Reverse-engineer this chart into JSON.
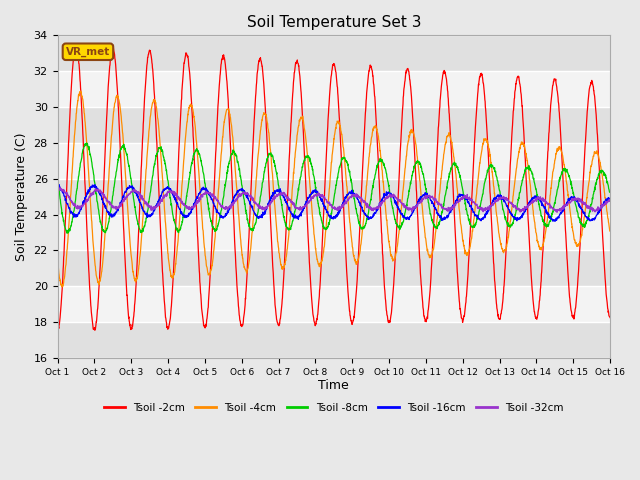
{
  "title": "Soil Temperature Set 3",
  "xlabel": "Time",
  "ylabel": "Soil Temperature (C)",
  "ylim": [
    16,
    34
  ],
  "xlim": [
    0,
    15
  ],
  "xtick_labels": [
    "Oct 1",
    "Oct 2",
    "Oct 3",
    "Oct 4",
    "Oct 5",
    "Oct 6",
    "Oct 7",
    "Oct 8",
    "Oct 9",
    "Oct 10",
    "Oct 11",
    "Oct 12",
    "Oct 13",
    "Oct 14",
    "Oct 15",
    "Oct 16"
  ],
  "ytick_values": [
    16,
    18,
    20,
    22,
    24,
    26,
    28,
    30,
    32,
    34
  ],
  "annotation_text": "VR_met",
  "annotation_color": "#8B4513",
  "annotation_bg": "#FFD700",
  "line_colors": [
    "#FF0000",
    "#FF8C00",
    "#00CC00",
    "#0000FF",
    "#9933CC"
  ],
  "line_labels": [
    "Tsoil -2cm",
    "Tsoil -4cm",
    "Tsoil -8cm",
    "Tsoil -16cm",
    "Tsoil -32cm"
  ],
  "bg_color": "#E8E8E8",
  "plot_bg_color": "#F0F0F0",
  "n_days": 15,
  "samples_per_day": 144,
  "amp_2cm_start": 8.0,
  "amp_2cm_end": 6.5,
  "amp_4cm_start": 5.5,
  "amp_4cm_end": 2.5,
  "amp_8cm_start": 2.5,
  "amp_8cm_end": 1.5,
  "amp_16cm_start": 0.85,
  "amp_16cm_end": 0.6,
  "amp_32cm_start": 0.5,
  "amp_32cm_end": 0.3,
  "mean_2cm": 25.5,
  "mean_4cm": 25.5,
  "mean_8cm": 25.5,
  "mean_16cm": 24.8,
  "mean_32cm": 24.9,
  "mean_drift": [
    -0.045,
    -0.04,
    -0.04,
    -0.035,
    -0.025
  ],
  "phase_2cm": 0.0,
  "phase_4cm": 0.12,
  "phase_8cm": 0.28,
  "phase_16cm": 0.48,
  "phase_32cm": 0.58
}
